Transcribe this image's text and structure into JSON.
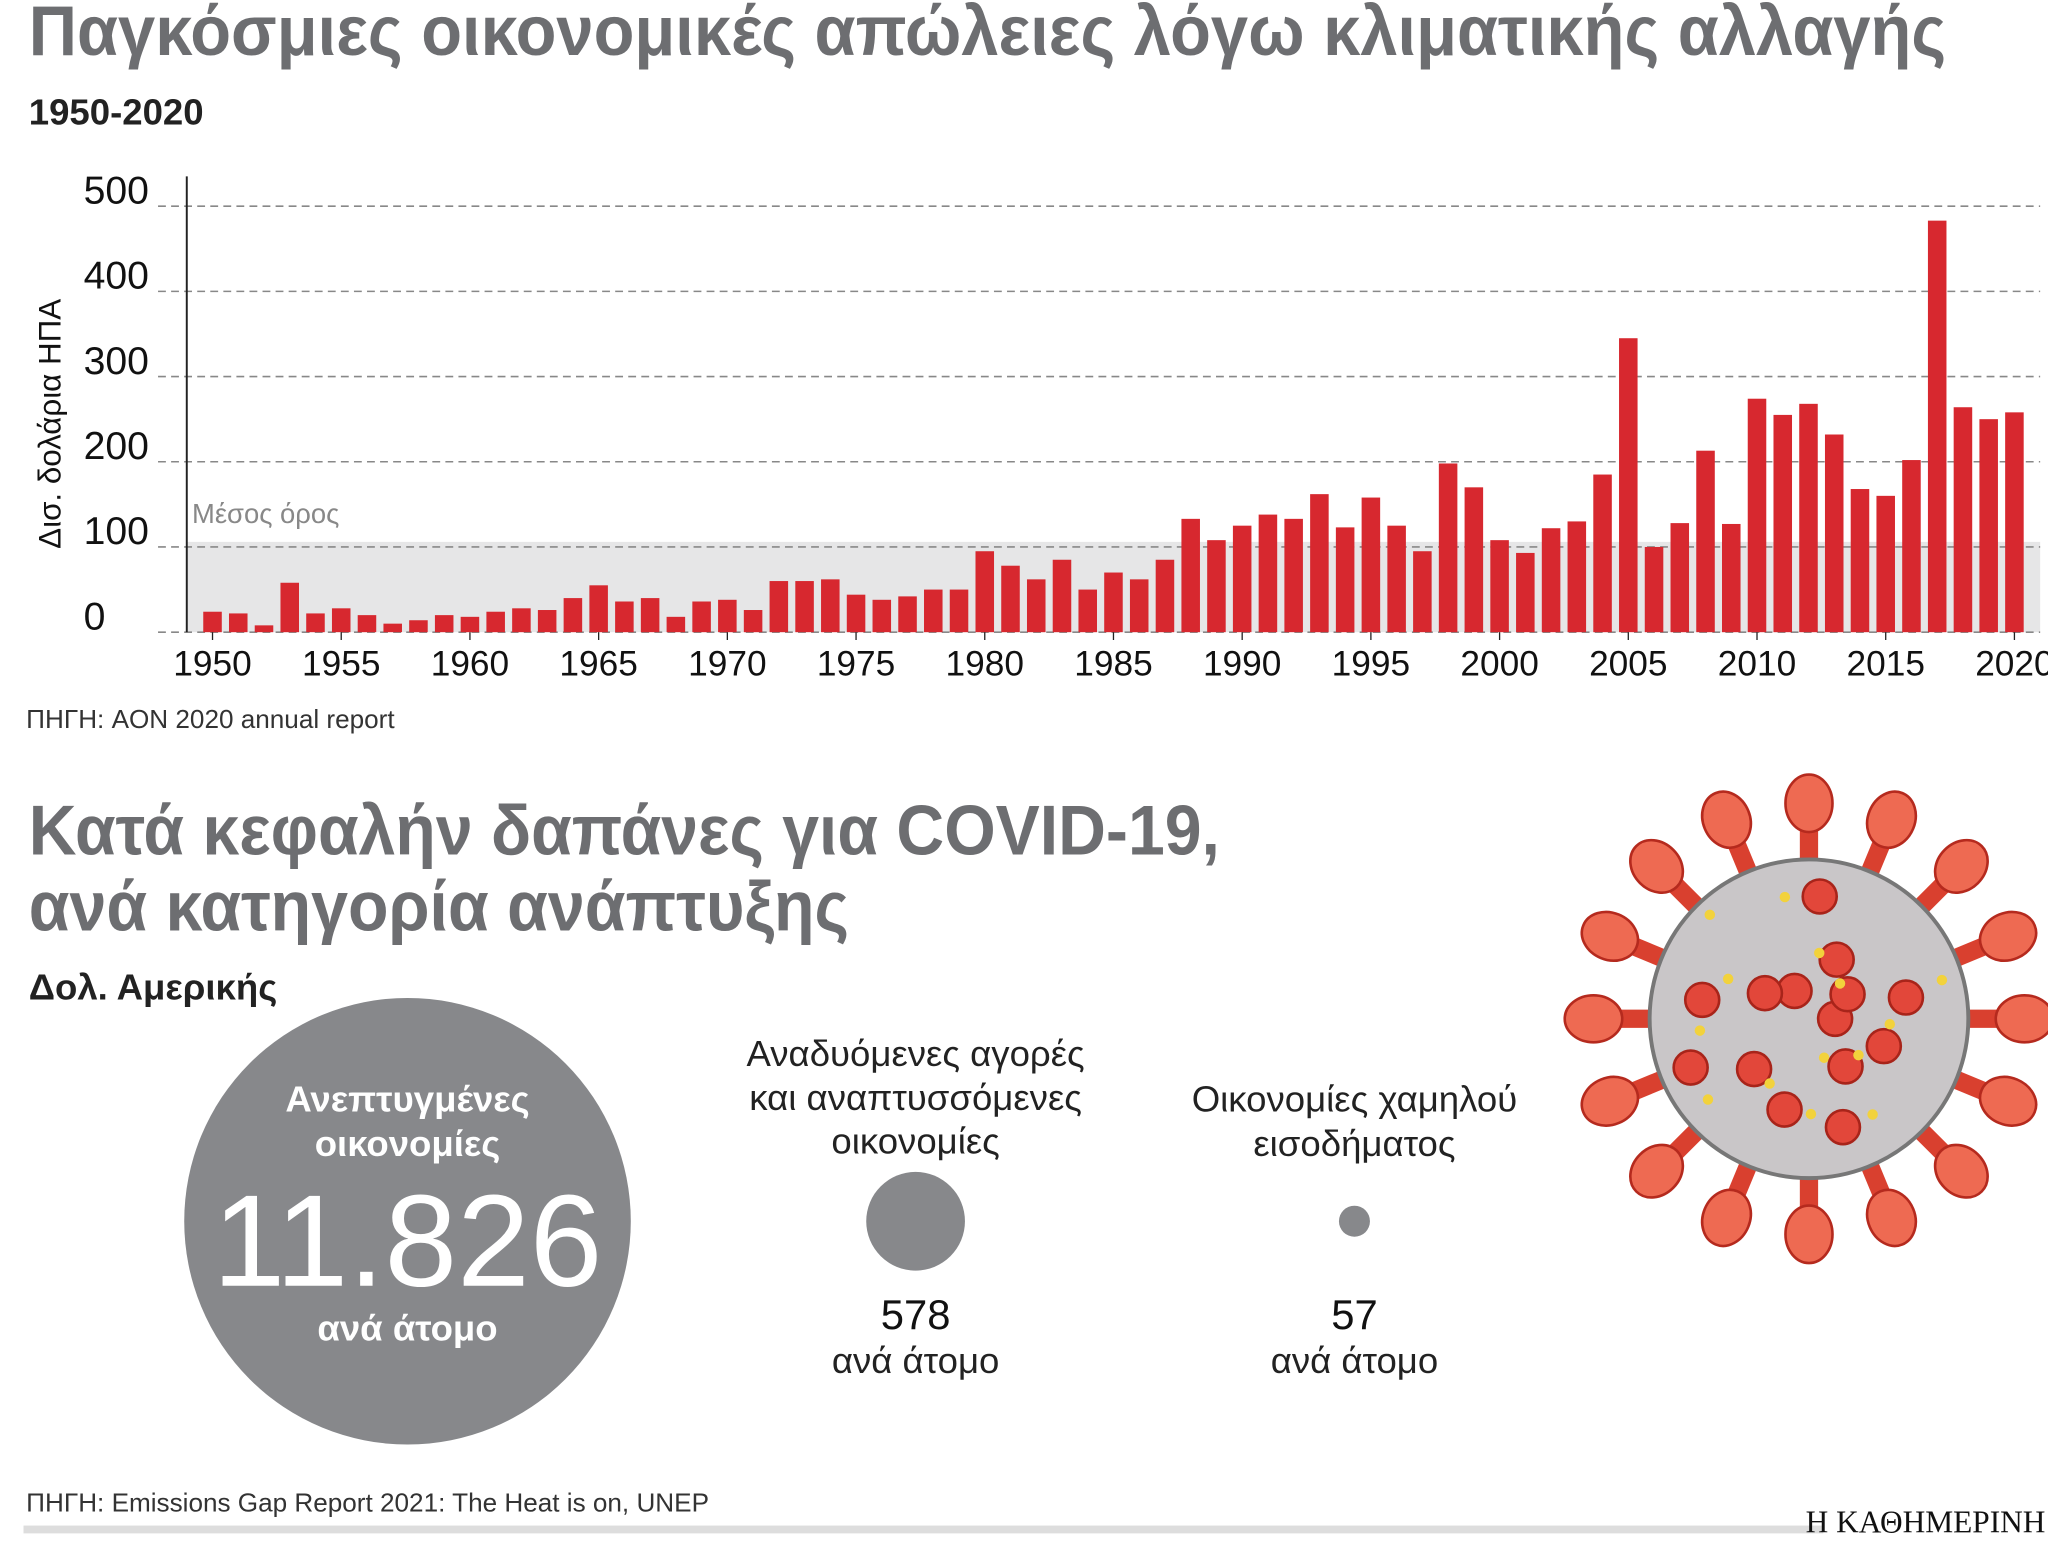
{
  "chart_data": [
    {
      "type": "bar",
      "title": "Παγκόσμιες οικονομικές απώλειες λόγω κλιματικής αλλαγής",
      "subtitle": "1950-2020",
      "y_label": "Δισ. δολάρια ΗΠΑ",
      "source": "ΠΗΓΗ: AON 2020 annual report",
      "color": "#d7282f",
      "average": {
        "value": 106,
        "label": "Μέσος όρος"
      },
      "x": [
        1950,
        1951,
        1952,
        1953,
        1954,
        1955,
        1956,
        1957,
        1958,
        1959,
        1960,
        1961,
        1962,
        1963,
        1964,
        1965,
        1966,
        1967,
        1968,
        1969,
        1970,
        1971,
        1972,
        1973,
        1974,
        1975,
        1976,
        1977,
        1978,
        1979,
        1980,
        1981,
        1982,
        1983,
        1984,
        1985,
        1986,
        1987,
        1988,
        1989,
        1990,
        1991,
        1992,
        1993,
        1994,
        1995,
        1996,
        1997,
        1998,
        1999,
        2000,
        2001,
        2002,
        2003,
        2004,
        2005,
        2006,
        2007,
        2008,
        2009,
        2010,
        2011,
        2012,
        2013,
        2014,
        2015,
        2016,
        2017,
        2018,
        2019,
        2020
      ],
      "values": [
        24,
        22,
        8,
        58,
        22,
        28,
        20,
        10,
        14,
        20,
        18,
        24,
        28,
        26,
        40,
        55,
        36,
        40,
        18,
        36,
        38,
        26,
        60,
        60,
        62,
        44,
        38,
        42,
        50,
        50,
        95,
        78,
        62,
        85,
        50,
        70,
        62,
        85,
        133,
        108,
        125,
        138,
        133,
        162,
        123,
        158,
        125,
        95,
        198,
        170,
        108,
        93,
        122,
        130,
        185,
        345,
        100,
        128,
        213,
        127,
        274,
        255,
        268,
        232,
        168,
        160,
        202,
        483,
        264,
        250,
        258
      ],
      "xlim": [
        1949,
        2021
      ],
      "xticks": [
        1950,
        1955,
        1960,
        1965,
        1970,
        1975,
        1980,
        1985,
        1990,
        1995,
        2000,
        2005,
        2010,
        2015,
        2020
      ],
      "ylim": [
        0,
        535
      ],
      "yticks": [
        0,
        100,
        200,
        300,
        400,
        500
      ],
      "grid": true
    },
    {
      "type": "bubble",
      "title": [
        "Κατά κεφαλήν δαπάνες για COVID-19,",
        "ανά κατηγορία ανάπτυξης"
      ],
      "subtitle": "Δολ. Αμερικής",
      "source": "ΠΗΓΗ: Emissions Gap Report 2021: The Heat is on, UNEP",
      "color": "#87888b",
      "categories": [
        "Ανεπτυγμένες οικονομίες",
        "Αναδυόμενες αγορές και αναπτυσσόμενες οικονομίες",
        "Οικονομίες χαμηλού εισοδήματος"
      ],
      "values": [
        11826,
        578,
        57
      ],
      "value_labels": [
        "11.826",
        "578",
        "57"
      ],
      "unit": "ανά άτομο"
    }
  ],
  "brand": "Η ΚΑΘΗΜΕΡΙΝΗ"
}
